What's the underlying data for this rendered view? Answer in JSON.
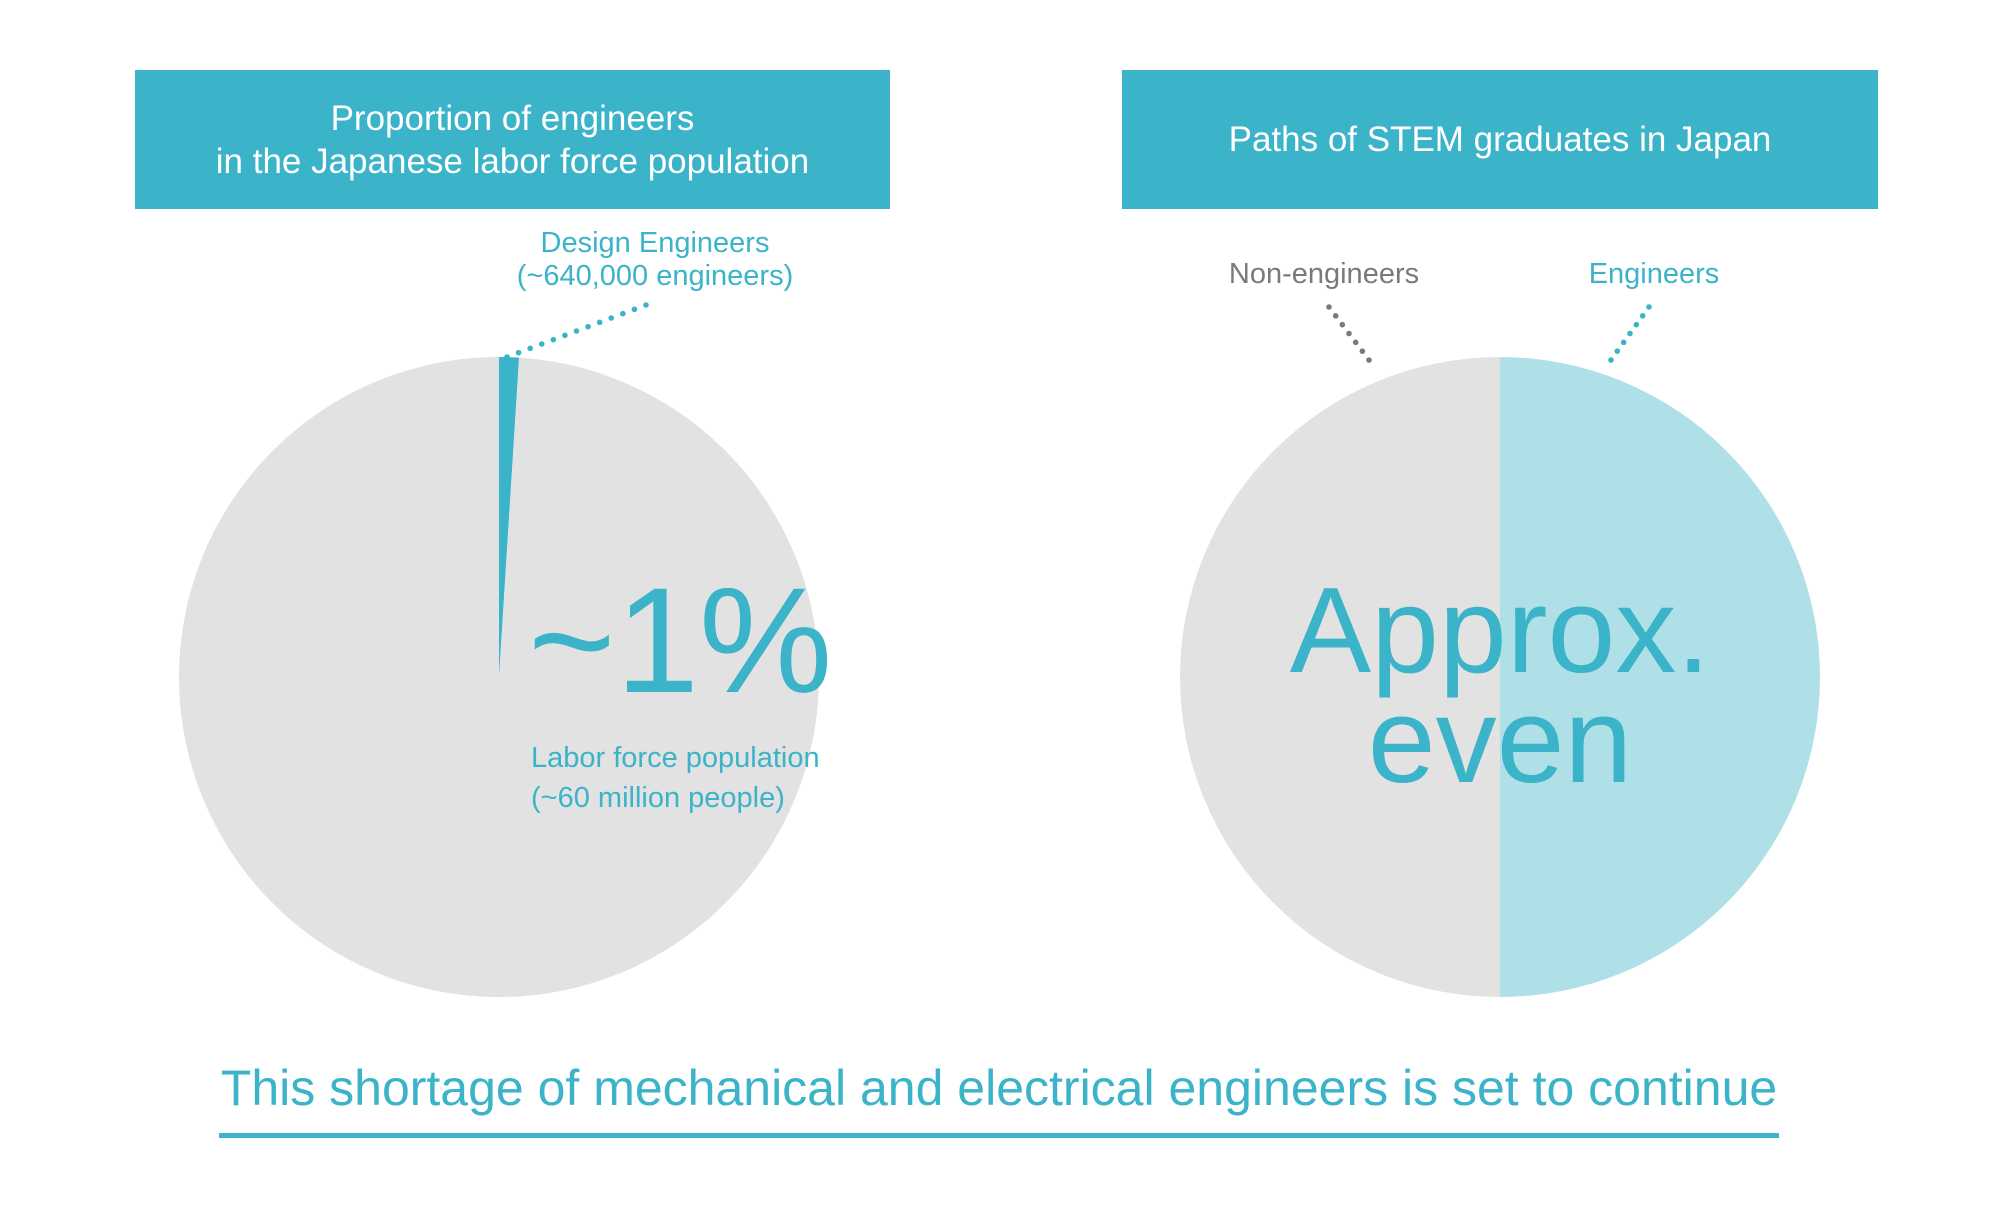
{
  "colors": {
    "accent": "#3BB3C8",
    "grey_slice": "#E2E2E2",
    "light_accent": "#B0E0E7",
    "grey_text": "#7A7A7A"
  },
  "chart_data": [
    {
      "type": "pie",
      "title": "Proportion of engineers\nin the Japanese labor force population",
      "title_lines": [
        "Proportion of engineers",
        "in the Japanese labor force population"
      ],
      "slices": [
        {
          "label": "Design Engineers",
          "sublabel": "(~640,000 engineers)",
          "value": 1,
          "color": "#3BB3C8"
        },
        {
          "label": "Labor force population",
          "sublabel": "(~60 million people)",
          "value": 99,
          "color": "#E2E2E2"
        }
      ],
      "annotation": "~1%"
    },
    {
      "type": "pie",
      "title": "Paths of STEM graduates in Japan",
      "slices": [
        {
          "label": "Engineers",
          "value": 50,
          "color": "#B0E0E7"
        },
        {
          "label": "Non-engineers",
          "value": 50,
          "color": "#E2E2E2"
        }
      ],
      "annotation_lines": [
        "Approx.",
        "even"
      ]
    }
  ],
  "footer": "This shortage of mechanical and electrical engineers is set to continue"
}
